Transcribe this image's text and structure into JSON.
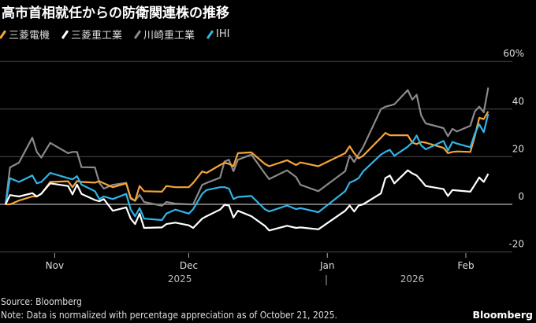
{
  "title": "高市首相就任からの防衛関連株の推移",
  "source": "Source: Bloomberg",
  "note": "Note: Data is normalized with percentage appreciation as of October 21, 2025.",
  "brand": "Bloomberg",
  "chart_data": {
    "type": "line",
    "title": "高市首相就任からの防衛関連株の推移",
    "xlabel": "",
    "ylabel": "",
    "ylim": [
      -20,
      60
    ],
    "yticks": [
      -20,
      0,
      20,
      40,
      60
    ],
    "ytick_labels": [
      "-20",
      "0",
      "20",
      "40",
      "60%"
    ],
    "xticks": [
      {
        "date": "2025-11-01",
        "label": "Nov"
      },
      {
        "date": "2025-12-01",
        "label": "Dec"
      },
      {
        "date": "2026-01-01",
        "label": "Jan"
      },
      {
        "date": "2026-02-01",
        "label": "Feb"
      }
    ],
    "year_labels": [
      {
        "date": "2025-11-29",
        "label": "2025"
      },
      {
        "date": "2026-01-20",
        "label": "2026"
      }
    ],
    "grid": true,
    "legend": "top-left",
    "x": [
      "2025-10-21",
      "2025-10-22",
      "2025-10-24",
      "2025-10-27",
      "2025-10-28",
      "2025-10-29",
      "2025-10-31",
      "2025-11-04",
      "2025-11-05",
      "2025-11-06",
      "2025-11-07",
      "2025-11-10",
      "2025-11-11",
      "2025-11-12",
      "2025-11-14",
      "2025-11-17",
      "2025-11-18",
      "2025-11-19",
      "2025-11-20",
      "2025-11-21",
      "2025-11-25",
      "2025-11-26",
      "2025-11-28",
      "2025-12-01",
      "2025-12-02",
      "2025-12-04",
      "2025-12-05",
      "2025-12-08",
      "2025-12-09",
      "2025-12-10",
      "2025-12-11",
      "2025-12-12",
      "2025-12-15",
      "2025-12-18",
      "2025-12-19",
      "2025-12-23",
      "2025-12-25",
      "2025-12-26",
      "2025-12-30",
      "2026-01-05",
      "2026-01-06",
      "2026-01-07",
      "2026-01-08",
      "2026-01-09",
      "2026-01-13",
      "2026-01-14",
      "2026-01-15",
      "2026-01-16",
      "2026-01-19",
      "2026-01-20",
      "2026-01-21",
      "2026-01-22",
      "2026-01-23",
      "2026-01-27",
      "2026-01-28",
      "2026-01-29",
      "2026-01-30",
      "2026-02-02",
      "2026-02-03",
      "2026-02-04",
      "2026-02-05",
      "2026-02-06"
    ],
    "series": [
      {
        "name": "三菱電機",
        "color": "#f5a33b",
        "values": [
          0,
          0,
          1.6,
          3.3,
          3.3,
          4.4,
          9.4,
          9.7,
          7.2,
          9.8,
          9.4,
          9.1,
          9.7,
          8.8,
          7.2,
          8.8,
          2.8,
          1.5,
          7.7,
          5.5,
          5.3,
          7.7,
          7.2,
          7.2,
          9,
          13.8,
          13.2,
          16.5,
          17.5,
          17,
          16,
          21.5,
          21.8,
          17,
          16,
          18.5,
          16.5,
          17.6,
          16,
          21.5,
          24.4,
          21.5,
          19.3,
          20.4,
          28,
          30,
          29,
          29,
          29,
          25.9,
          25.3,
          26.2,
          25.9,
          23.7,
          21.5,
          22,
          22.2,
          22,
          28.6,
          36.3,
          35.8,
          39
        ]
      },
      {
        "name": "三菱重工業",
        "color": "#ffffff",
        "values": [
          0,
          3.9,
          3.3,
          4.7,
          3.3,
          4.5,
          8.8,
          7.7,
          4.2,
          8.3,
          4.4,
          1.8,
          1.3,
          2.2,
          -2.7,
          -1.3,
          -6,
          -8.3,
          -3.9,
          -9.9,
          -9.7,
          -8.3,
          -7.7,
          -8.8,
          -9.9,
          -6,
          -5,
          -2.2,
          -0.2,
          -0.5,
          -5.5,
          -2.7,
          -5,
          -9,
          -11,
          -9,
          -9.9,
          -9.7,
          -10.5,
          -2.7,
          -0.5,
          -3,
          -0.5,
          0,
          4.6,
          11,
          12.1,
          8.8,
          14.3,
          13,
          12.1,
          10,
          7.7,
          6.4,
          3.5,
          6,
          5.8,
          5.3,
          8.3,
          11.3,
          9.4,
          12.8
        ]
      },
      {
        "name": "川崎重工業",
        "color": "#8a8a8a",
        "values": [
          0,
          15.5,
          17.5,
          28,
          22,
          19.6,
          25.8,
          21.5,
          22,
          22,
          15.6,
          15.5,
          9,
          6.6,
          8.2,
          9,
          2.3,
          1.5,
          4,
          1,
          -0.6,
          1,
          0.3,
          0,
          0,
          8.2,
          9,
          11.2,
          18,
          18.7,
          13.9,
          18.7,
          20.9,
          13,
          10.6,
          14.3,
          11.5,
          8.2,
          5.5,
          13.9,
          20.5,
          17.8,
          21,
          24,
          40,
          41,
          41.5,
          42,
          48,
          44,
          46,
          37.4,
          34,
          32,
          28.6,
          31.7,
          30.6,
          33,
          39,
          41,
          38.6,
          49
        ]
      },
      {
        "name": "IHI",
        "color": "#30b5e8",
        "values": [
          0,
          11,
          9.4,
          12.1,
          8.8,
          9.4,
          13.2,
          11,
          10.5,
          11.8,
          8.3,
          5.5,
          2.2,
          3.3,
          2.2,
          4.4,
          -2.2,
          -5,
          -1.6,
          -6,
          -6.6,
          -3.9,
          -2.2,
          -3.9,
          -2,
          4.4,
          6,
          7.2,
          7.2,
          6.6,
          2.2,
          3.1,
          3.5,
          -2,
          -3,
          -0.5,
          -2,
          -1.6,
          -3.3,
          5.5,
          9.1,
          9.9,
          11,
          13.8,
          20.9,
          22,
          22.9,
          20.4,
          24.2,
          26,
          28.9,
          24.8,
          23.1,
          26.6,
          22.6,
          26.2,
          25.5,
          24,
          29.7,
          33.6,
          30.3,
          38
        ]
      }
    ]
  }
}
